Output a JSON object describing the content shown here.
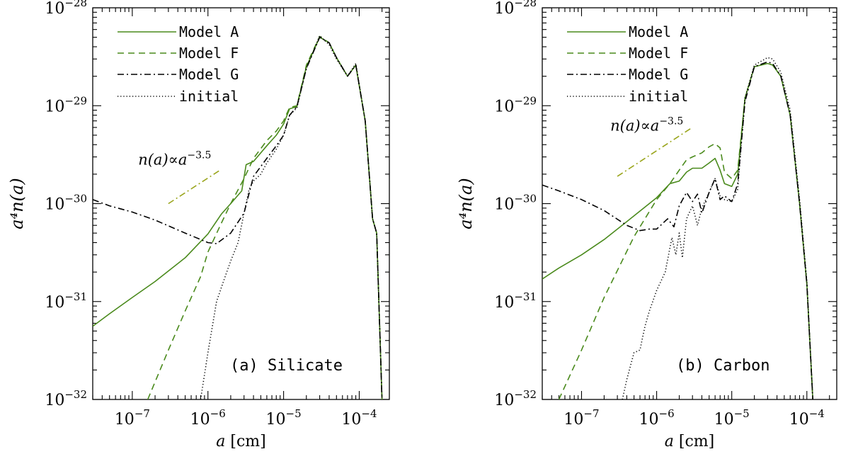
{
  "chart_data": [
    {
      "type": "line",
      "panel_label": "(a) Silicate",
      "xlabel_var": "a",
      "xlabel_unit": "[cm]",
      "ylabel": "a⁴n(a)",
      "xscale": "log",
      "yscale": "log",
      "xlim": [
        3e-08,
        0.00025
      ],
      "ylim": [
        1e-32,
        1e-28
      ],
      "x_ticks": [
        {
          "value": 1e-07,
          "mant": "10",
          "exp": "−7"
        },
        {
          "value": 1e-06,
          "mant": "10",
          "exp": "−6"
        },
        {
          "value": 1e-05,
          "mant": "10",
          "exp": "−5"
        },
        {
          "value": 0.0001,
          "mant": "10",
          "exp": "−4"
        }
      ],
      "y_ticks": [
        {
          "value": 1e-32,
          "mant": "10",
          "exp": "−32"
        },
        {
          "value": 1e-31,
          "mant": "10",
          "exp": "−31"
        },
        {
          "value": 1e-30,
          "mant": "10",
          "exp": "−30"
        },
        {
          "value": 1e-29,
          "mant": "10",
          "exp": "−29"
        },
        {
          "value": 1e-28,
          "mant": "10",
          "exp": "−28"
        }
      ],
      "legend_position": "top-left",
      "annotation": {
        "text_main": "n(a)∝a",
        "text_exp": "−3.5",
        "slope": -0.5,
        "x_range": [
          3e-07,
          1.5e-06
        ],
        "y_start": 1e-30
      },
      "series": [
        {
          "name": "Model A",
          "style": "solid",
          "color": "#4a8a1c",
          "x": [
            3e-08,
            5e-08,
            1e-07,
            2e-07,
            5e-07,
            1e-06,
            1.5e-06,
            2e-06,
            2.8e-06,
            3.2e-06,
            4e-06,
            6e-06,
            8e-06,
            1e-05,
            1.2e-05,
            1.5e-05,
            2e-05,
            3e-05,
            4e-05,
            5e-05,
            7e-05,
            9e-05,
            0.00012,
            0.00015,
            0.00017,
            0.0002
          ],
          "y": [
            5.6e-32,
            7.5e-32,
            1.1e-31,
            1.6e-31,
            2.8e-31,
            4.9e-31,
            7.8e-31,
            1e-30,
            1.35e-30,
            2.5e-30,
            2.7e-30,
            3.9e-30,
            5e-30,
            6.5e-30,
            9.3e-30,
            9.8e-30,
            2.5e-29,
            5e-29,
            4.4e-29,
            3.1e-29,
            2e-29,
            2.6e-29,
            7e-30,
            7e-31,
            5e-31,
            1e-32
          ]
        },
        {
          "name": "Model F",
          "style": "dashed",
          "color": "#4a8a1c",
          "x": [
            1.6e-07,
            3e-07,
            5e-07,
            8e-07,
            1e-06,
            1.5e-06,
            2e-06,
            3e-06,
            4e-06,
            6e-06,
            8e-06,
            1e-05,
            1.2e-05,
            1.5e-05,
            2e-05,
            3e-05,
            4e-05,
            5e-05,
            7e-05,
            9e-05,
            0.00012,
            0.00015,
            0.00017,
            0.0002
          ],
          "y": [
            1e-32,
            3.2e-32,
            8e-32,
            1.8e-31,
            3.2e-31,
            6.3e-31,
            1e-30,
            1.8e-30,
            2.9e-30,
            4.4e-30,
            5.5e-30,
            7e-30,
            9.6e-30,
            1e-29,
            2.6e-29,
            5.1e-29,
            4.4e-29,
            3.1e-29,
            2e-29,
            2.6e-29,
            7e-30,
            7e-31,
            5e-31,
            1e-32
          ]
        },
        {
          "name": "Model G",
          "style": "dashdot",
          "color": "#000000",
          "x": [
            3e-08,
            5e-08,
            1e-07,
            2e-07,
            5e-07,
            1e-06,
            1.3e-06,
            2e-06,
            3e-06,
            4e-06,
            6e-06,
            8e-06,
            1e-05,
            1.2e-05,
            1.5e-05,
            2e-05,
            3e-05,
            4e-05,
            5e-05,
            7e-05,
            9e-05,
            0.00012,
            0.00015,
            0.00017,
            0.0002
          ],
          "y": [
            1.1e-30,
            9.5e-31,
            8.2e-31,
            6.8e-31,
            5e-31,
            4e-31,
            3.9e-31,
            5e-31,
            8e-31,
            1.9e-30,
            2.9e-30,
            3.9e-30,
            5e-30,
            8e-30,
            9.8e-30,
            2.4e-29,
            5e-29,
            4.4e-29,
            3.1e-29,
            2e-29,
            2.6e-29,
            7e-30,
            7e-31,
            5e-31,
            1e-32
          ]
        },
        {
          "name": "initial",
          "style": "dotted",
          "color": "#000000",
          "x": [
            8e-07,
            1e-06,
            1.3e-06,
            1.6e-06,
            2e-06,
            2.5e-06,
            3e-06,
            3.5e-06,
            4e-06,
            5e-06,
            6e-06,
            8e-06,
            1e-05,
            1.2e-05,
            1.5e-05,
            2e-05,
            3e-05,
            4e-05,
            5e-05,
            7e-05,
            9e-05,
            0.00012,
            0.00015,
            0.00017,
            0.0002
          ],
          "y": [
            1e-32,
            3e-32,
            1e-31,
            1.6e-31,
            2.6e-31,
            4e-31,
            8e-31,
            1.4e-30,
            1.7e-30,
            2e-30,
            2.6e-30,
            3.6e-30,
            5e-30,
            8e-30,
            9.5e-30,
            2.4e-29,
            5.2e-29,
            4.2e-29,
            3e-29,
            2e-29,
            2.7e-29,
            7e-30,
            7e-31,
            5e-31,
            1e-32
          ]
        }
      ]
    },
    {
      "type": "line",
      "panel_label": "(b) Carbon",
      "xlabel_var": "a",
      "xlabel_unit": "[cm]",
      "ylabel": "a⁴n(a)",
      "xscale": "log",
      "yscale": "log",
      "xlim": [
        3e-08,
        0.00025
      ],
      "ylim": [
        1e-32,
        1e-28
      ],
      "x_ticks": [
        {
          "value": 1e-07,
          "mant": "10",
          "exp": "−7"
        },
        {
          "value": 1e-06,
          "mant": "10",
          "exp": "−6"
        },
        {
          "value": 1e-05,
          "mant": "10",
          "exp": "−5"
        },
        {
          "value": 0.0001,
          "mant": "10",
          "exp": "−4"
        }
      ],
      "y_ticks": [
        {
          "value": 1e-32,
          "mant": "10",
          "exp": "−32"
        },
        {
          "value": 1e-31,
          "mant": "10",
          "exp": "−31"
        },
        {
          "value": 1e-30,
          "mant": "10",
          "exp": "−30"
        },
        {
          "value": 1e-29,
          "mant": "10",
          "exp": "−29"
        },
        {
          "value": 1e-28,
          "mant": "10",
          "exp": "−28"
        }
      ],
      "legend_position": "top-left",
      "annotation": {
        "text_main": "n(a)∝a",
        "text_exp": "−3.5",
        "slope": -0.5,
        "x_range": [
          3e-07,
          3e-06
        ],
        "y_start": 1.9e-30
      },
      "series": [
        {
          "name": "Model A",
          "style": "solid",
          "color": "#4a8a1c",
          "x": [
            3e-08,
            5e-08,
            1e-07,
            2e-07,
            5e-07,
            1e-06,
            1.5e-06,
            2e-06,
            2.5e-06,
            3e-06,
            4e-06,
            5e-06,
            6e-06,
            7e-06,
            8e-06,
            1e-05,
            1.2e-05,
            1.5e-05,
            2e-05,
            3e-05,
            3.5e-05,
            4.5e-05,
            6e-05,
            8e-05,
            0.0001,
            0.00012
          ],
          "y": [
            1.7e-31,
            2.2e-31,
            3e-31,
            4.3e-31,
            7.5e-31,
            1.15e-30,
            1.6e-30,
            1.7e-30,
            2.1e-30,
            2.3e-30,
            2.3e-30,
            2.6e-30,
            2.9e-30,
            2.2e-30,
            1.6e-30,
            1.5e-30,
            2e-30,
            1.2e-29,
            2.5e-29,
            2.7e-29,
            2.6e-29,
            2e-29,
            8e-30,
            1e-30,
            1.5e-31,
            1e-32
          ]
        },
        {
          "name": "Model F",
          "style": "dashed",
          "color": "#4a8a1c",
          "x": [
            5e-08,
            1e-07,
            2e-07,
            5e-07,
            1e-06,
            1.5e-06,
            2e-06,
            2.5e-06,
            3e-06,
            4e-06,
            5e-06,
            6e-06,
            7e-06,
            8e-06,
            1e-05,
            1.2e-05,
            1.5e-05,
            2e-05,
            3e-05,
            3.5e-05,
            4.5e-05,
            6e-05,
            8e-05,
            0.0001,
            0.00012
          ],
          "y": [
            1e-32,
            3.2e-32,
            1.1e-31,
            4.6e-31,
            1.1e-30,
            1.6e-30,
            2.2e-30,
            2.8e-30,
            3e-30,
            3.3e-30,
            3.8e-30,
            4.1e-30,
            3.7e-30,
            2.1e-30,
            1.8e-30,
            2.2e-30,
            1.2e-29,
            2.5e-29,
            2.7e-29,
            2.6e-29,
            2e-29,
            8e-30,
            1e-30,
            1.5e-31,
            1e-32
          ]
        },
        {
          "name": "Model G",
          "style": "dashdot",
          "color": "#000000",
          "x": [
            3e-08,
            5e-08,
            1e-07,
            2e-07,
            4e-07,
            6e-07,
            8e-07,
            1e-06,
            1.4e-06,
            1.7e-06,
            2e-06,
            2.5e-06,
            3e-06,
            3.5e-06,
            4e-06,
            5e-06,
            6e-06,
            7e-06,
            8e-06,
            1e-05,
            1.2e-05,
            1.5e-05,
            2e-05,
            3e-05,
            3.5e-05,
            4.5e-05,
            6e-05,
            8e-05,
            0.0001,
            0.00012
          ],
          "y": [
            1.55e-30,
            1.35e-30,
            1.1e-30,
            8.5e-31,
            6e-31,
            5.3e-31,
            5.5e-31,
            5.5e-31,
            7e-31,
            5.8e-31,
            9.5e-31,
            1.3e-30,
            1.05e-30,
            1.25e-30,
            8e-31,
            1.3e-30,
            1.8e-30,
            1.1e-30,
            1.2e-30,
            1.05e-30,
            1.6e-30,
            1.1e-29,
            2.5e-29,
            2.8e-29,
            2.7e-29,
            2e-29,
            8e-30,
            1e-30,
            1.5e-31,
            1e-32
          ]
        },
        {
          "name": "initial",
          "style": "dotted",
          "color": "#000000",
          "x": [
            3.5e-07,
            4e-07,
            5e-07,
            6e-07,
            7e-07,
            8e-07,
            1e-06,
            1.3e-06,
            1.6e-06,
            1.8e-06,
            2e-06,
            2.2e-06,
            2.5e-06,
            3e-06,
            3.5e-06,
            4e-06,
            5e-06,
            6e-06,
            7e-06,
            8e-06,
            1e-05,
            1.2e-05,
            1.5e-05,
            2e-05,
            3e-05,
            3.5e-05,
            4.5e-05,
            6e-05,
            8e-05,
            0.0001,
            0.00012
          ],
          "y": [
            1e-32,
            1.6e-32,
            3e-32,
            3.2e-32,
            5.6e-32,
            8e-32,
            1.3e-31,
            2e-31,
            4.5e-31,
            3e-31,
            5e-31,
            2.8e-31,
            7e-31,
            9.5e-31,
            6e-31,
            9e-31,
            1.3e-30,
            1.8e-30,
            1.2e-30,
            1.1e-30,
            1.05e-30,
            1.4e-30,
            1.2e-29,
            2.6e-29,
            3.1e-29,
            3e-29,
            2.2e-29,
            9e-30,
            1.1e-30,
            1.6e-31,
            1e-32
          ]
        }
      ]
    }
  ]
}
